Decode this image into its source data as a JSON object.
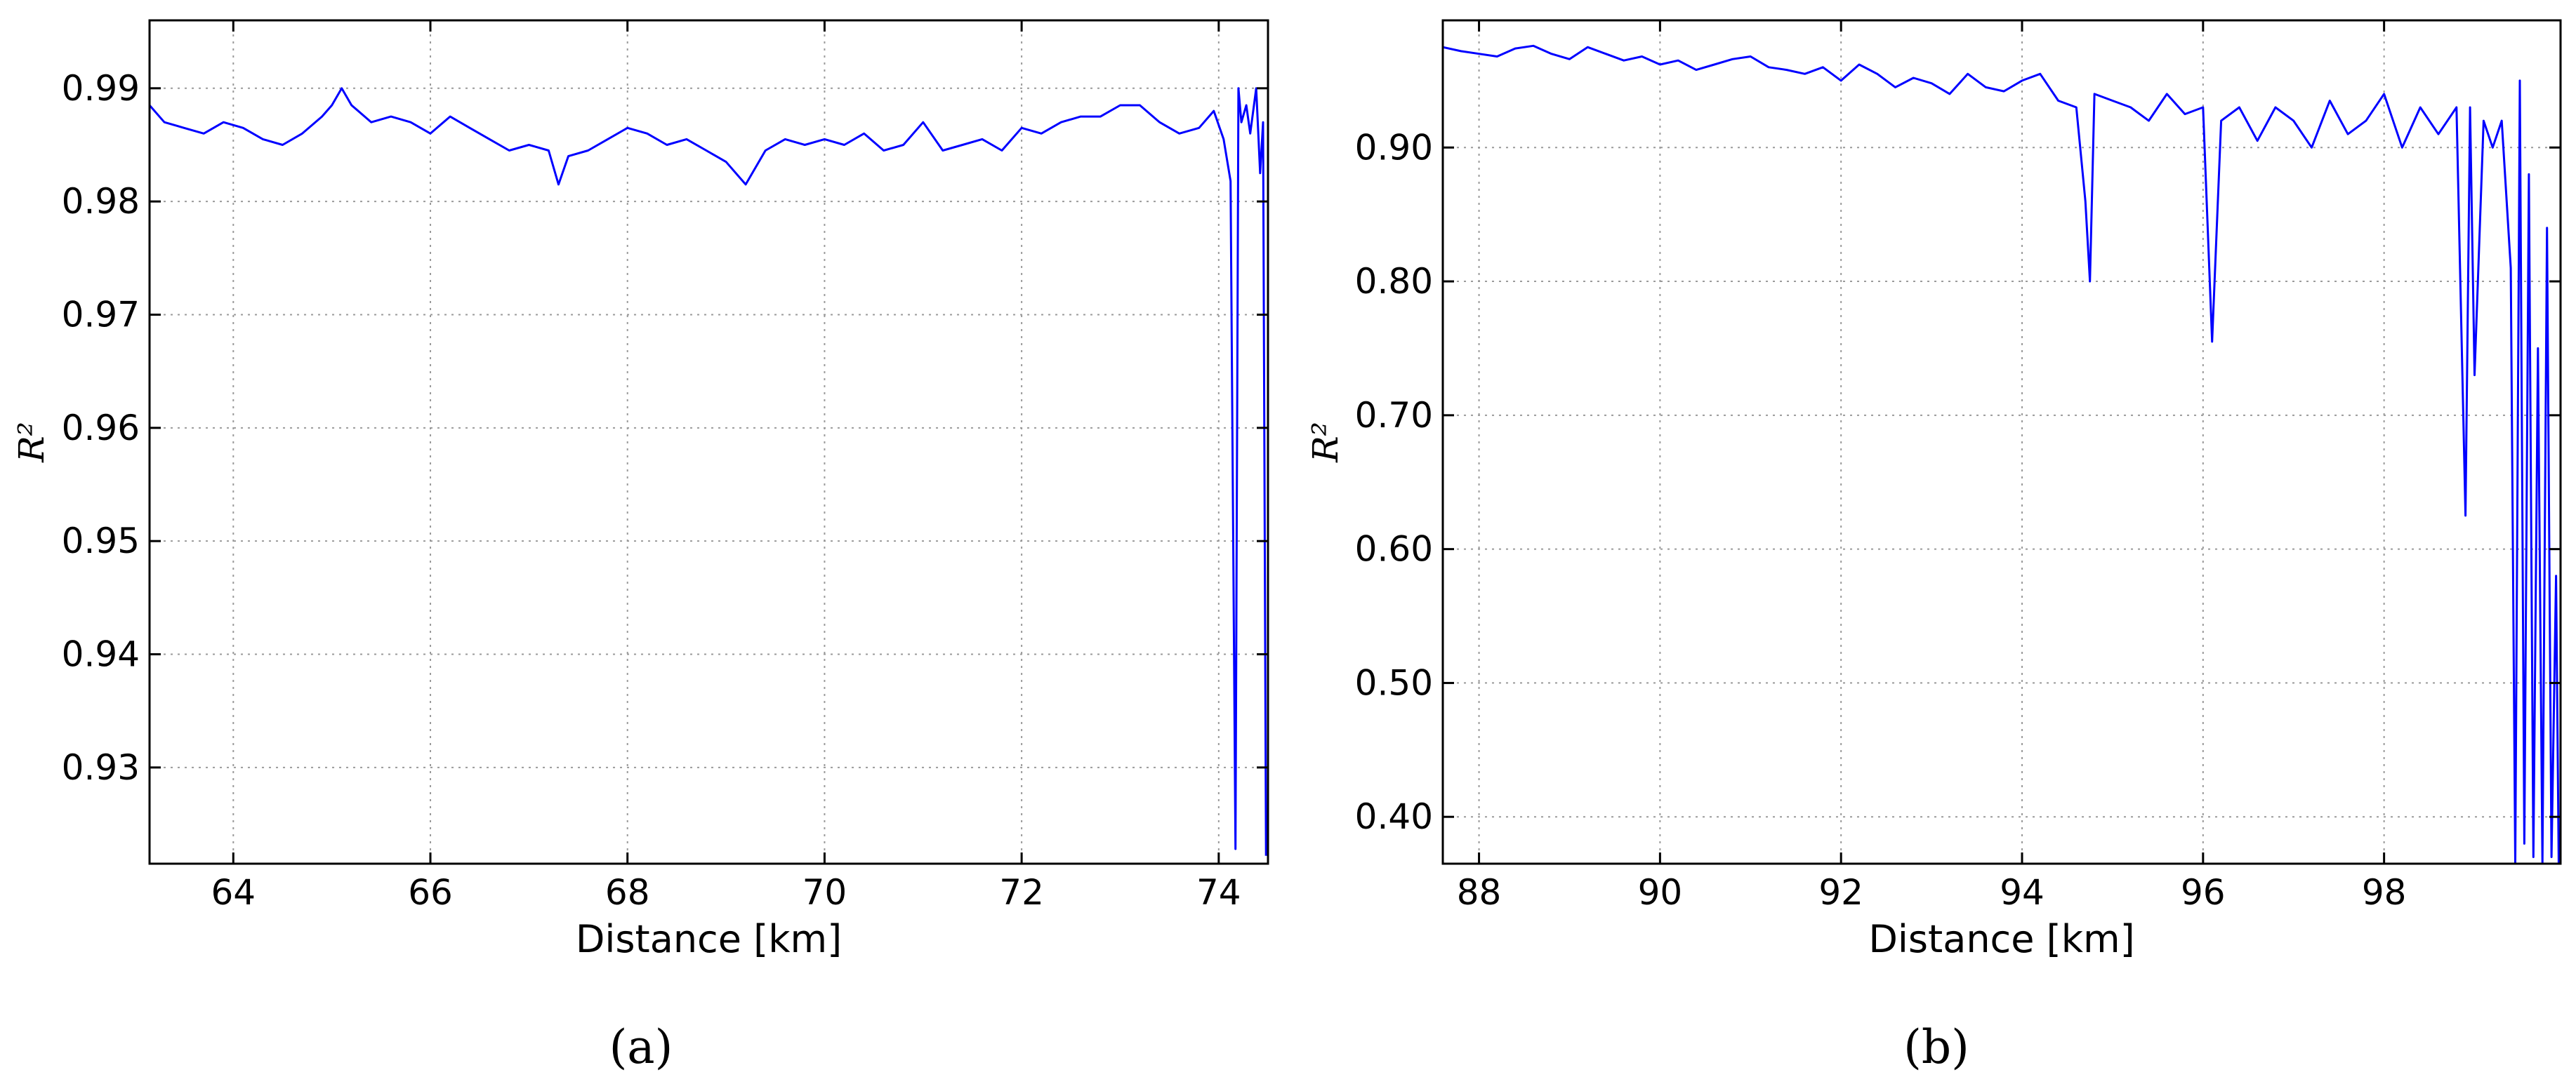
{
  "chart_data": [
    {
      "type": "line",
      "panel_label": "(a)",
      "xlabel": "Distance [km]",
      "ylabel": "R²",
      "xlim": [
        63.15,
        74.5
      ],
      "ylim": [
        0.9215,
        0.996
      ],
      "xticks": [
        64,
        66,
        68,
        70,
        72,
        74
      ],
      "xtick_labels": [
        "64",
        "66",
        "68",
        "70",
        "72",
        "74"
      ],
      "yticks": [
        0.93,
        0.94,
        0.95,
        0.96,
        0.97,
        0.98,
        0.99
      ],
      "ytick_labels": [
        "0.93",
        "0.94",
        "0.95",
        "0.96",
        "0.97",
        "0.98",
        "0.99"
      ],
      "grid": true,
      "color": "#0000ff",
      "series": [
        {
          "x": [
            63.15,
            63.3,
            63.5,
            63.7,
            63.9,
            64.1,
            64.3,
            64.5,
            64.7,
            64.9,
            65.0,
            65.1,
            65.2,
            65.4,
            65.6,
            65.8,
            66.0,
            66.2,
            66.4,
            66.6,
            66.8,
            67.0,
            67.2,
            67.3,
            67.4,
            67.6,
            67.8,
            68.0,
            68.2,
            68.4,
            68.6,
            68.8,
            69.0,
            69.2,
            69.4,
            69.6,
            69.8,
            70.0,
            70.2,
            70.4,
            70.6,
            70.8,
            71.0,
            71.2,
            71.4,
            71.6,
            71.8,
            72.0,
            72.2,
            72.4,
            72.6,
            72.8,
            73.0,
            73.2,
            73.4,
            73.6,
            73.8,
            73.95,
            74.05,
            74.12,
            74.17,
            74.2,
            74.23,
            74.28,
            74.32,
            74.38,
            74.42,
            74.45,
            74.48
          ],
          "y": [
            0.9885,
            0.987,
            0.9865,
            0.986,
            0.987,
            0.9865,
            0.9855,
            0.985,
            0.986,
            0.9875,
            0.9885,
            0.99,
            0.9885,
            0.987,
            0.9875,
            0.987,
            0.986,
            0.9875,
            0.9865,
            0.9855,
            0.9845,
            0.985,
            0.9845,
            0.9815,
            0.984,
            0.9845,
            0.9855,
            0.9865,
            0.986,
            0.985,
            0.9855,
            0.9845,
            0.9835,
            0.9815,
            0.9845,
            0.9855,
            0.985,
            0.9855,
            0.985,
            0.986,
            0.9845,
            0.985,
            0.987,
            0.9845,
            0.985,
            0.9855,
            0.9845,
            0.9865,
            0.986,
            0.987,
            0.9875,
            0.9875,
            0.9885,
            0.9885,
            0.987,
            0.986,
            0.9865,
            0.988,
            0.9855,
            0.9818,
            0.9228,
            0.99,
            0.987,
            0.9885,
            0.986,
            0.99,
            0.9825,
            0.987,
            0.9222
          ]
        }
      ]
    },
    {
      "type": "line",
      "panel_label": "(b)",
      "xlabel": "Distance [km]",
      "ylabel": "R²",
      "xlim": [
        87.6,
        99.95
      ],
      "ylim": [
        0.365,
        0.995
      ],
      "xticks": [
        88,
        90,
        92,
        94,
        96,
        98
      ],
      "xtick_labels": [
        "88",
        "90",
        "92",
        "94",
        "96",
        "98"
      ],
      "yticks": [
        0.4,
        0.5,
        0.6,
        0.7,
        0.8,
        0.9
      ],
      "ytick_labels": [
        "0.40",
        "0.50",
        "0.60",
        "0.70",
        "0.80",
        "0.90"
      ],
      "grid": true,
      "color": "#0000ff",
      "series": [
        {
          "x": [
            87.6,
            87.8,
            88.0,
            88.2,
            88.4,
            88.6,
            88.8,
            89.0,
            89.2,
            89.4,
            89.6,
            89.8,
            90.0,
            90.2,
            90.4,
            90.6,
            90.8,
            91.0,
            91.2,
            91.4,
            91.6,
            91.8,
            92.0,
            92.2,
            92.4,
            92.6,
            92.8,
            93.0,
            93.2,
            93.4,
            93.6,
            93.8,
            94.0,
            94.2,
            94.4,
            94.6,
            94.7,
            94.75,
            94.8,
            95.0,
            95.2,
            95.4,
            95.6,
            95.8,
            96.0,
            96.1,
            96.2,
            96.4,
            96.6,
            96.8,
            97.0,
            97.2,
            97.4,
            97.6,
            97.8,
            98.0,
            98.2,
            98.4,
            98.6,
            98.8,
            98.9,
            98.95,
            99.0,
            99.1,
            99.2,
            99.3,
            99.4,
            99.45,
            99.5,
            99.55,
            99.6,
            99.65,
            99.7,
            99.75,
            99.8,
            99.85,
            99.9,
            99.93
          ],
          "y": [
            0.975,
            0.972,
            0.97,
            0.968,
            0.974,
            0.976,
            0.97,
            0.966,
            0.975,
            0.97,
            0.965,
            0.968,
            0.962,
            0.965,
            0.958,
            0.962,
            0.966,
            0.968,
            0.96,
            0.958,
            0.955,
            0.96,
            0.95,
            0.962,
            0.955,
            0.945,
            0.952,
            0.948,
            0.94,
            0.955,
            0.945,
            0.942,
            0.95,
            0.955,
            0.935,
            0.93,
            0.86,
            0.8,
            0.94,
            0.935,
            0.93,
            0.92,
            0.94,
            0.925,
            0.93,
            0.755,
            0.92,
            0.93,
            0.905,
            0.93,
            0.92,
            0.9,
            0.935,
            0.91,
            0.92,
            0.94,
            0.9,
            0.93,
            0.91,
            0.93,
            0.625,
            0.93,
            0.73,
            0.92,
            0.9,
            0.92,
            0.81,
            0.365,
            0.95,
            0.38,
            0.88,
            0.37,
            0.75,
            0.365,
            0.84,
            0.37,
            0.58,
            0.365
          ]
        }
      ]
    }
  ]
}
